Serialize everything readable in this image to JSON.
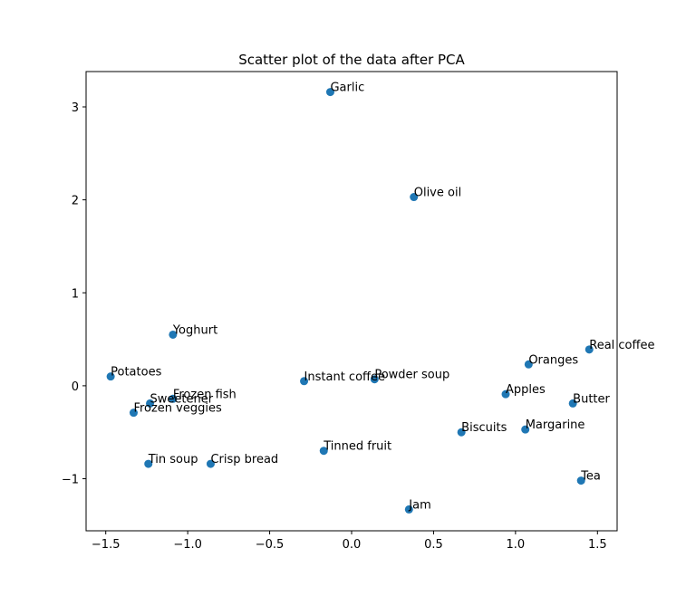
{
  "chart_data": {
    "type": "scatter",
    "title": "Scatter plot of the data after PCA",
    "xlabel": "",
    "ylabel": "",
    "xlim": [
      -1.62,
      1.62
    ],
    "ylim": [
      -1.56,
      3.38
    ],
    "xticks": [
      -1.5,
      -1.0,
      -0.5,
      0.0,
      0.5,
      1.0,
      1.5
    ],
    "xtick_labels": [
      "−1.5",
      "−1.0",
      "−0.5",
      "0.0",
      "0.5",
      "1.0",
      "1.5"
    ],
    "yticks": [
      -1,
      0,
      1,
      2,
      3
    ],
    "ytick_labels": [
      "−1",
      "0",
      "1",
      "2",
      "3"
    ],
    "grid": false,
    "marker_color": "#1f77b4",
    "points": [
      {
        "label": "Garlic",
        "x": -0.13,
        "y": 3.16
      },
      {
        "label": "Olive oil",
        "x": 0.38,
        "y": 2.03
      },
      {
        "label": "Yoghurt",
        "x": -1.09,
        "y": 0.55
      },
      {
        "label": "Real coffee",
        "x": 1.45,
        "y": 0.39
      },
      {
        "label": "Oranges",
        "x": 1.08,
        "y": 0.23
      },
      {
        "label": "Potatoes",
        "x": -1.47,
        "y": 0.1
      },
      {
        "label": "Instant coffee",
        "x": -0.29,
        "y": 0.05
      },
      {
        "label": "Powder soup",
        "x": 0.14,
        "y": 0.07
      },
      {
        "label": "Apples",
        "x": 0.94,
        "y": -0.09
      },
      {
        "label": "Frozen fish",
        "x": -1.09,
        "y": -0.14
      },
      {
        "label": "Sweetener",
        "x": -1.23,
        "y": -0.19
      },
      {
        "label": "Butter",
        "x": 1.35,
        "y": -0.19
      },
      {
        "label": "Frozen veggies",
        "x": -1.33,
        "y": -0.29
      },
      {
        "label": "Margarine",
        "x": 1.06,
        "y": -0.47
      },
      {
        "label": "Biscuits",
        "x": 0.67,
        "y": -0.5
      },
      {
        "label": "Tinned fruit",
        "x": -0.17,
        "y": -0.7
      },
      {
        "label": "Tin soup",
        "x": -1.24,
        "y": -0.84
      },
      {
        "label": "Crisp bread",
        "x": -0.86,
        "y": -0.84
      },
      {
        "label": "Tea",
        "x": 1.4,
        "y": -1.02
      },
      {
        "label": "Jam",
        "x": 0.35,
        "y": -1.33
      }
    ]
  }
}
